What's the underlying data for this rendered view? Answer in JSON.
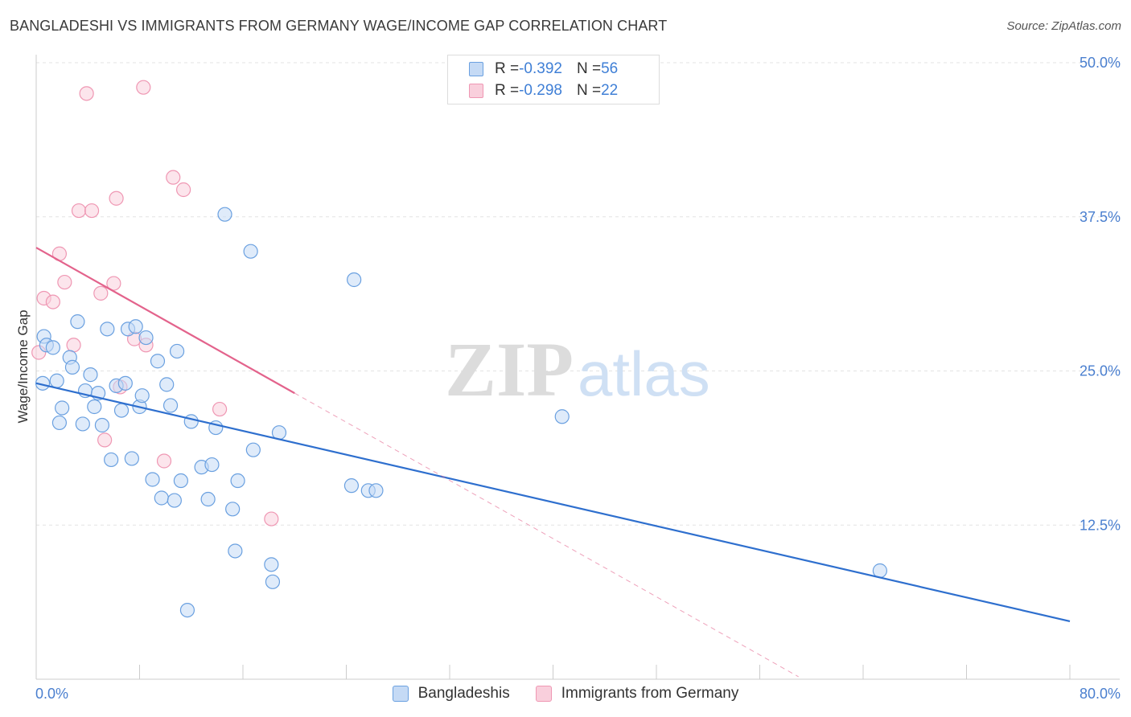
{
  "title": "BANGLADESHI VS IMMIGRANTS FROM GERMANY WAGE/INCOME GAP CORRELATION CHART",
  "source": "Source: ZipAtlas.com",
  "watermark": {
    "zip": "ZIP",
    "atlas": "atlas"
  },
  "colors": {
    "blue": "#6aa0e0",
    "blue_fill": "#c5daf5",
    "blue_line": "#2e6fce",
    "pink": "#ef97b3",
    "pink_fill": "#f9cfdc",
    "pink_line": "#e3638c",
    "tick": "#4a7fcf",
    "grid": "#e3e3e3"
  },
  "legend_top": {
    "rows": [
      {
        "r_label": "R = ",
        "r_value": "-0.392",
        "n_label": "N = ",
        "n_value": "56"
      },
      {
        "r_label": "R = ",
        "r_value": "-0.298",
        "n_label": "N = ",
        "n_value": "22"
      }
    ]
  },
  "chart_data": {
    "type": "scatter",
    "title": "BANGLADESHI VS IMMIGRANTS FROM GERMANY WAGE/INCOME GAP CORRELATION CHART",
    "xlabel": "",
    "ylabel": "Wage/Income Gap",
    "xlim": [
      0,
      80
    ],
    "ylim": [
      0,
      50
    ],
    "x_tick_labels": [
      "0.0%",
      "80.0%"
    ],
    "y_ticks": [
      12.5,
      25.0,
      37.5,
      50.0
    ],
    "y_tick_labels": [
      "12.5%",
      "25.0%",
      "37.5%",
      "50.0%"
    ],
    "grid": "horizontal dashed",
    "legend_placement": "bottom-center",
    "series": [
      {
        "name": "Bangladeshis",
        "color": "#6aa0e0",
        "points": [
          [
            0.5,
            24.0
          ],
          [
            0.6,
            27.8
          ],
          [
            0.8,
            27.1
          ],
          [
            1.3,
            26.9
          ],
          [
            1.6,
            24.2
          ],
          [
            1.8,
            20.8
          ],
          [
            2.0,
            22.0
          ],
          [
            2.6,
            26.1
          ],
          [
            2.8,
            25.3
          ],
          [
            3.2,
            29.0
          ],
          [
            3.6,
            20.7
          ],
          [
            3.8,
            23.4
          ],
          [
            4.2,
            24.7
          ],
          [
            4.5,
            22.1
          ],
          [
            4.8,
            23.2
          ],
          [
            5.1,
            20.6
          ],
          [
            5.5,
            28.4
          ],
          [
            5.8,
            17.8
          ],
          [
            6.2,
            23.8
          ],
          [
            6.6,
            21.8
          ],
          [
            6.9,
            24.0
          ],
          [
            7.1,
            28.4
          ],
          [
            7.4,
            17.9
          ],
          [
            7.7,
            28.6
          ],
          [
            8.0,
            22.1
          ],
          [
            8.2,
            23.0
          ],
          [
            8.5,
            27.7
          ],
          [
            9.0,
            16.2
          ],
          [
            9.4,
            25.8
          ],
          [
            9.7,
            14.7
          ],
          [
            10.1,
            23.9
          ],
          [
            10.4,
            22.2
          ],
          [
            10.7,
            14.5
          ],
          [
            10.9,
            26.6
          ],
          [
            11.2,
            16.1
          ],
          [
            11.7,
            5.6
          ],
          [
            12.0,
            20.9
          ],
          [
            12.8,
            17.2
          ],
          [
            13.3,
            14.6
          ],
          [
            13.6,
            17.4
          ],
          [
            13.9,
            20.4
          ],
          [
            14.6,
            37.7
          ],
          [
            15.2,
            13.8
          ],
          [
            15.4,
            10.4
          ],
          [
            15.6,
            16.1
          ],
          [
            16.6,
            34.7
          ],
          [
            16.8,
            18.6
          ],
          [
            18.2,
            9.3
          ],
          [
            18.3,
            7.9
          ],
          [
            18.8,
            20.0
          ],
          [
            24.6,
            32.4
          ],
          [
            24.4,
            15.7
          ],
          [
            25.7,
            15.3
          ],
          [
            26.3,
            15.3
          ],
          [
            40.7,
            21.3
          ],
          [
            65.3,
            8.8
          ]
        ],
        "trendline": {
          "x": [
            0,
            80
          ],
          "y": [
            24.0,
            4.7
          ]
        }
      },
      {
        "name": "Immigrants from Germany",
        "color": "#ef97b3",
        "points": [
          [
            0.2,
            26.5
          ],
          [
            0.6,
            30.9
          ],
          [
            1.3,
            30.6
          ],
          [
            1.8,
            34.5
          ],
          [
            2.2,
            32.2
          ],
          [
            2.9,
            27.1
          ],
          [
            3.3,
            38.0
          ],
          [
            3.9,
            47.5
          ],
          [
            4.3,
            38.0
          ],
          [
            5.0,
            31.3
          ],
          [
            5.3,
            19.4
          ],
          [
            6.0,
            32.1
          ],
          [
            6.2,
            39.0
          ],
          [
            6.5,
            23.7
          ],
          [
            7.6,
            27.6
          ],
          [
            8.3,
            48.0
          ],
          [
            8.5,
            27.1
          ],
          [
            9.9,
            17.7
          ],
          [
            10.6,
            40.7
          ],
          [
            11.4,
            39.7
          ],
          [
            14.2,
            21.9
          ],
          [
            18.2,
            13.0
          ]
        ],
        "trendline": {
          "x": [
            0,
            20
          ],
          "y": [
            35.0,
            23.2
          ]
        },
        "trendline_extension": {
          "x": [
            20,
            59
          ],
          "y": [
            23.2,
            0.2
          ]
        }
      }
    ]
  }
}
